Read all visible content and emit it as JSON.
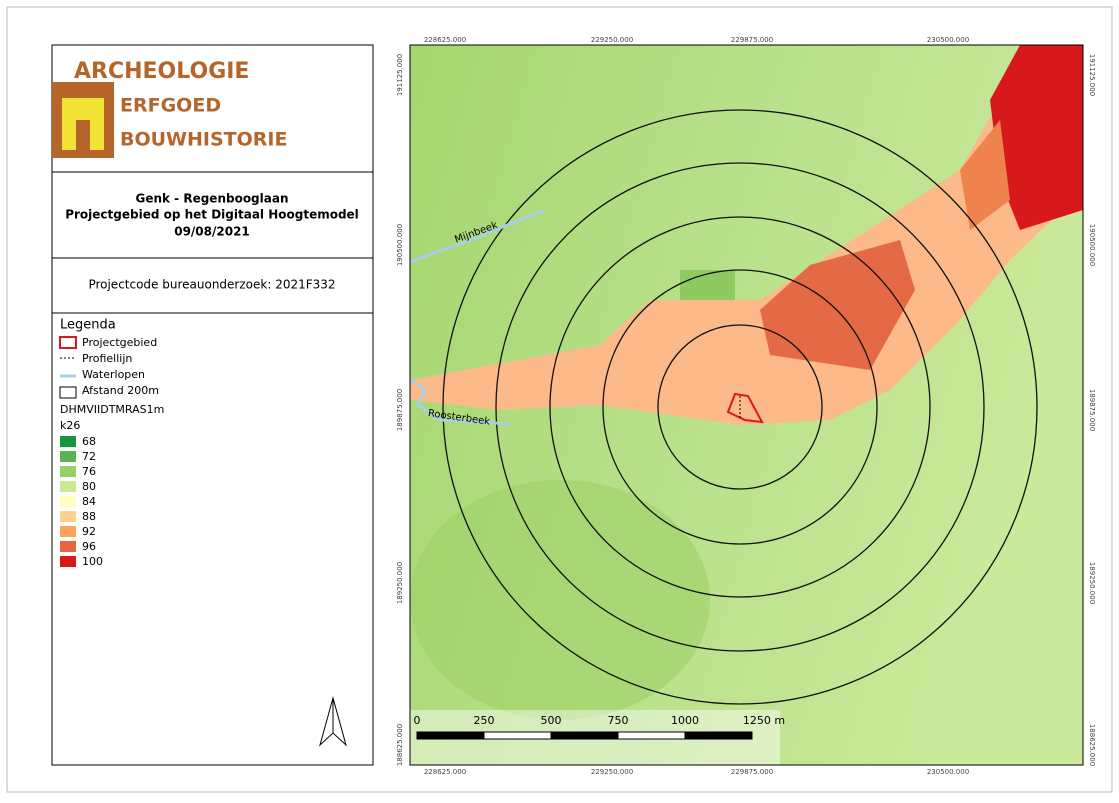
{
  "logo": {
    "line1": "ARCHEOLOGIE",
    "line2": "ERFGOED",
    "line3": "BOUWHISTORIE"
  },
  "title": {
    "line1": "Genk - Regenbooglaan",
    "line2": "Projectgebied op het Digitaal Hoogtemodel",
    "line3": "09/08/2021"
  },
  "projectcode": "Projectcode bureauonderzoek: 2021F332",
  "legend": {
    "title": "Legenda",
    "items": [
      {
        "label": "Projectgebied"
      },
      {
        "label": "Profiellijn"
      },
      {
        "label": "Waterlopen"
      },
      {
        "label": "Afstand 200m"
      }
    ],
    "layer": "DHMVIIDTMRAS1m",
    "band": "k26",
    "classes": [
      {
        "label": "68",
        "color": "#1a9641"
      },
      {
        "label": "72",
        "color": "#58b353"
      },
      {
        "label": "76",
        "color": "#97d066"
      },
      {
        "label": "80",
        "color": "#cbe991"
      },
      {
        "label": "84",
        "color": "#ffffc0"
      },
      {
        "label": "88",
        "color": "#fed18b"
      },
      {
        "label": "92",
        "color": "#fda35c"
      },
      {
        "label": "96",
        "color": "#ea643f"
      },
      {
        "label": "100",
        "color": "#d7191c"
      }
    ]
  },
  "map": {
    "x_labels": [
      "228625.000",
      "229250.000",
      "229875.000",
      "230500.000"
    ],
    "y_labels": [
      "191125.000",
      "190500.000",
      "189875.000",
      "189250.000",
      "188625.000"
    ],
    "streams": [
      "Mijnbeek",
      "Roosterbeek"
    ],
    "scale_labels": [
      "0",
      "250",
      "500",
      "750",
      "1000",
      "1250 m"
    ]
  }
}
